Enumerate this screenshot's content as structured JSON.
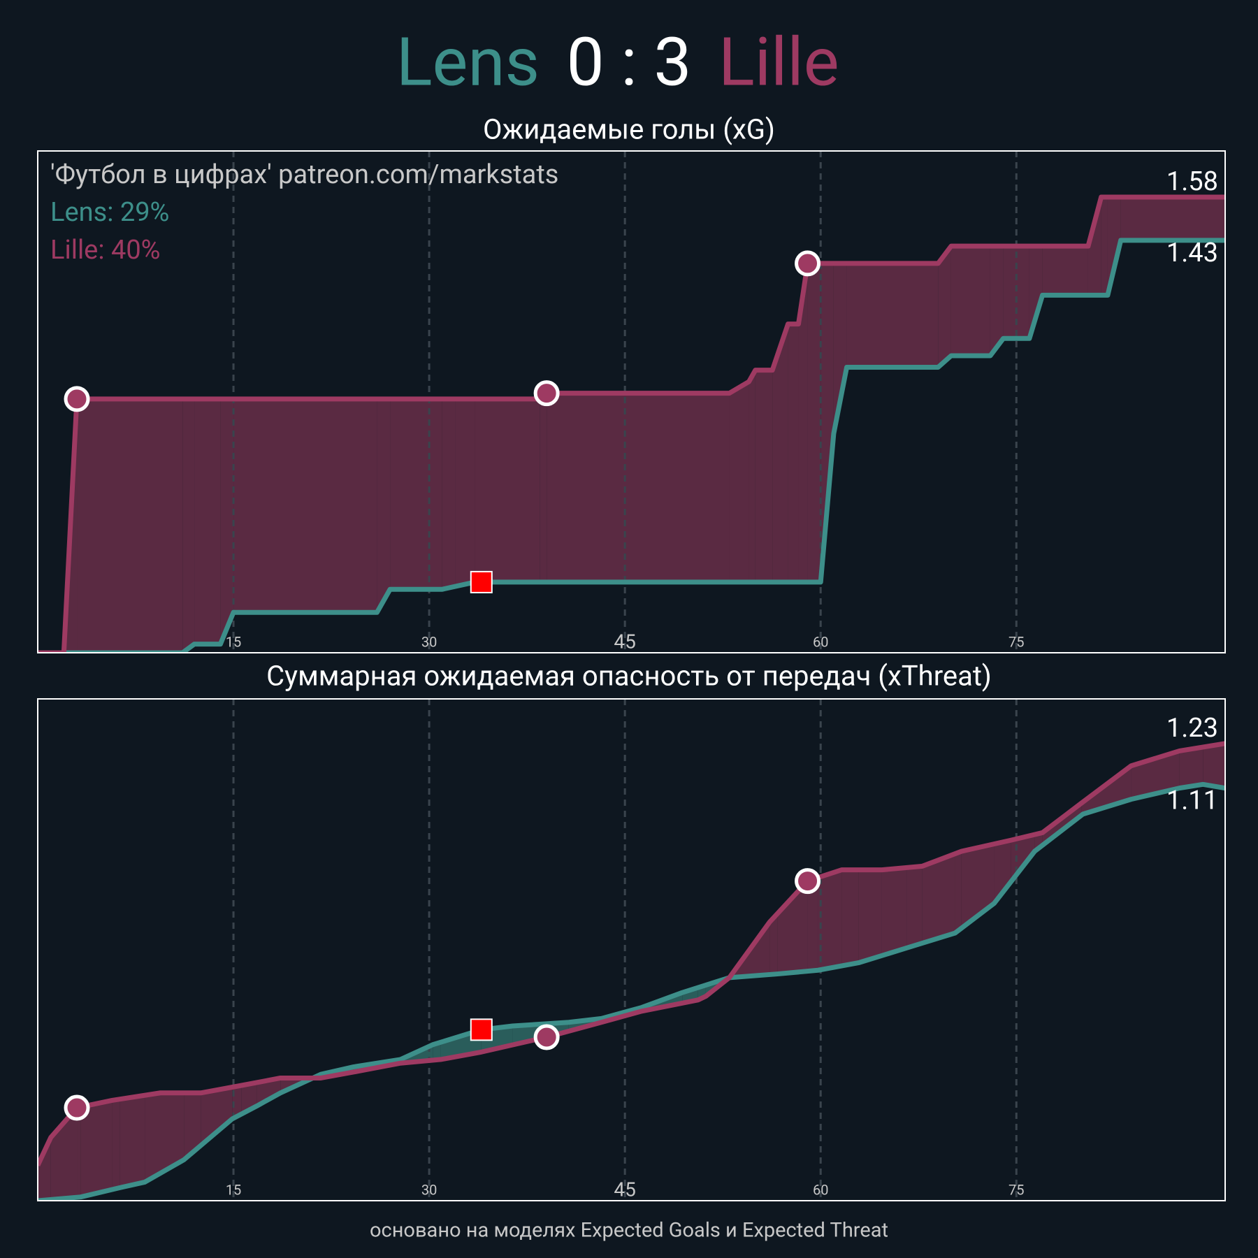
{
  "header": {
    "home": "Lens",
    "score": "0 : 3",
    "away": "Lille"
  },
  "chart_data": [
    {
      "type": "line",
      "title": "Ожидаемые голы (xG)",
      "xlim": [
        0,
        91
      ],
      "ylim": [
        0,
        1.74
      ],
      "xticks": [
        15,
        30,
        45,
        60,
        75
      ],
      "grid": true,
      "notes": [
        {
          "text": "'Футбол в цифрах' patreon.com/markstats",
          "color": "#c8c8c8"
        },
        {
          "text": "Lens: 29%",
          "color": "#3d8f8a"
        },
        {
          "text": "Lille: 40%",
          "color": "#9e3a62"
        }
      ],
      "series": [
        {
          "name": "Lens",
          "color": "#3d8f8a",
          "x": [
            0,
            11.1,
            12,
            14,
            15,
            26,
            27,
            31,
            32,
            33.5,
            60,
            61,
            62,
            69,
            70,
            73,
            74,
            76,
            77,
            82,
            83,
            91
          ],
          "values": [
            0,
            0,
            0.03,
            0.03,
            0.14,
            0.14,
            0.22,
            0.22,
            0.23,
            0.245,
            0.245,
            0.76,
            0.99,
            0.99,
            1.03,
            1.03,
            1.09,
            1.09,
            1.24,
            1.24,
            1.43,
            1.43
          ]
        },
        {
          "name": "Lille",
          "color": "#9e3a62",
          "x": [
            0,
            2,
            3,
            38.5,
            39,
            53,
            54.5,
            55,
            56.3,
            57.5,
            58.3,
            59,
            69,
            70,
            80.5,
            81.5,
            91
          ],
          "values": [
            0,
            0,
            0.88,
            0.88,
            0.9,
            0.9,
            0.94,
            0.98,
            0.98,
            1.14,
            1.14,
            1.35,
            1.35,
            1.41,
            1.41,
            1.58,
            1.58
          ]
        }
      ]
    },
    {
      "type": "line",
      "title": "Суммарная ожидаемая опасность от передач (xThreat)",
      "xlim": [
        0,
        91
      ],
      "ylim": [
        0,
        1.35
      ],
      "xticks": [
        15,
        30,
        45,
        60,
        75
      ],
      "grid": true,
      "series": [
        {
          "name": "Lens",
          "color": "#3d8f8a",
          "x": [
            0,
            3.3,
            6.3,
            8.2,
            11.2,
            14.9,
            16.8,
            18.6,
            21.7,
            24.2,
            27.8,
            30.3,
            34,
            36.4,
            40.7,
            43.2,
            46.3,
            49.4,
            53,
            56.7,
            59.8,
            62.9,
            66.6,
            70.3,
            73.3,
            76.4,
            80.1,
            83.8,
            87.5,
            89.3,
            91
          ],
          "values": [
            0,
            0.01,
            0.035,
            0.05,
            0.11,
            0.22,
            0.255,
            0.29,
            0.34,
            0.36,
            0.38,
            0.42,
            0.46,
            0.47,
            0.48,
            0.49,
            0.52,
            0.56,
            0.6,
            0.61,
            0.62,
            0.64,
            0.68,
            0.72,
            0.8,
            0.94,
            1.04,
            1.08,
            1.11,
            1.12,
            1.11
          ]
        },
        {
          "name": "Lille",
          "color": "#9e3a62",
          "x": [
            0,
            1,
            3,
            5.7,
            9.4,
            12.5,
            15.6,
            18.6,
            21.7,
            24.8,
            27.8,
            30.9,
            34,
            39,
            43.2,
            46.3,
            50.6,
            51.2,
            53,
            56.1,
            59,
            61.6,
            64.7,
            67.8,
            70.8,
            74.6,
            77,
            80,
            83.8,
            87.5,
            91
          ],
          "values": [
            0.095,
            0.17,
            0.25,
            0.27,
            0.29,
            0.29,
            0.31,
            0.33,
            0.33,
            0.35,
            0.37,
            0.38,
            0.4,
            0.44,
            0.48,
            0.51,
            0.54,
            0.55,
            0.6,
            0.75,
            0.86,
            0.89,
            0.89,
            0.9,
            0.94,
            0.97,
            0.99,
            1.07,
            1.17,
            1.21,
            1.23
          ]
        }
      ]
    }
  ],
  "events": [
    {
      "team": "Lille",
      "type": "goal",
      "minute": 3
    },
    {
      "team": "Lille",
      "type": "goal",
      "minute": 39
    },
    {
      "team": "Lille",
      "type": "goal",
      "minute": 59
    },
    {
      "team": "Lens",
      "type": "red_card",
      "minute": 34
    }
  ],
  "footer": "основано на моделях Expected Goals и Expected Threat"
}
